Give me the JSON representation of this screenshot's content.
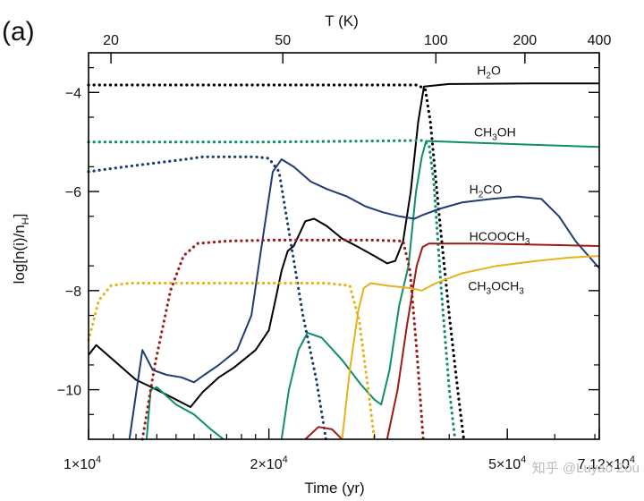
{
  "chart_data": {
    "type": "line",
    "panel_label": "(a)",
    "title": "",
    "xlabel": "Time (yr)",
    "ylabel": "log[n(i)/n",
    "ylabel_sub": "H",
    "ylabel_close": "]",
    "top_axis_title": "T (K)",
    "x_scale": "log",
    "xlim": [
      10000,
      71200
    ],
    "ylim": [
      -11,
      -3.2
    ],
    "x_tick_labels": [
      {
        "value": 10000,
        "mantissa": "1×10",
        "exp": "4"
      },
      {
        "value": 20000,
        "mantissa": "2×10",
        "exp": "4"
      },
      {
        "value": 50000,
        "mantissa": "5×10",
        "exp": "4"
      },
      {
        "value": 71200,
        "mantissa": "7.12×10",
        "exp": "4"
      }
    ],
    "y_ticks": [
      -4,
      -6,
      -8,
      -10
    ],
    "y_tick_labels": [
      "−4",
      "−6",
      "−8",
      "−10"
    ],
    "top_ticks": [
      {
        "label": "20",
        "time": 10900
      },
      {
        "label": "50",
        "time": 21100
      },
      {
        "label": "100",
        "time": 38000
      },
      {
        "label": "200",
        "time": 53500
      },
      {
        "label": "400",
        "time": 71200
      }
    ],
    "grid": false,
    "species_labels": [
      {
        "series": "H2O",
        "parts": [
          [
            "H",
            ""
          ],
          [
            "2",
            "sub"
          ],
          [
            "O",
            ""
          ]
        ],
        "time": 44500,
        "y": -3.55
      },
      {
        "series": "CH3OH",
        "parts": [
          [
            "CH",
            ""
          ],
          [
            "3",
            "sub"
          ],
          [
            "OH",
            ""
          ]
        ],
        "time": 44000,
        "y": -4.8
      },
      {
        "series": "H2CO",
        "parts": [
          [
            "H",
            ""
          ],
          [
            "2",
            "sub"
          ],
          [
            "CO",
            ""
          ]
        ],
        "time": 43200,
        "y": -5.95
      },
      {
        "series": "HCOOCH3",
        "parts": [
          [
            "HCOOCH",
            ""
          ],
          [
            "3",
            "sub"
          ]
        ],
        "time": 43200,
        "y": -6.9
      },
      {
        "series": "CH3OCH3",
        "parts": [
          [
            "CH",
            ""
          ],
          [
            "3",
            "sub"
          ],
          [
            "OCH",
            ""
          ],
          [
            "3",
            "sub"
          ]
        ],
        "time": 43000,
        "y": -7.9
      }
    ],
    "series": [
      {
        "name": "H2O",
        "phase": "gas",
        "color": "#000000",
        "style": "solid",
        "points": [
          [
            10000,
            -9.3
          ],
          [
            10300,
            -9.1
          ],
          [
            11000,
            -9.4
          ],
          [
            12000,
            -9.8
          ],
          [
            13000,
            -10.0
          ],
          [
            14000,
            -10.2
          ],
          [
            14800,
            -10.35
          ],
          [
            15500,
            -10.05
          ],
          [
            16500,
            -9.75
          ],
          [
            17500,
            -9.55
          ],
          [
            19000,
            -9.2
          ],
          [
            20000,
            -8.8
          ],
          [
            20500,
            -8.2
          ],
          [
            21000,
            -7.6
          ],
          [
            21500,
            -7.2
          ],
          [
            22000,
            -7.1
          ],
          [
            22500,
            -6.85
          ],
          [
            23000,
            -6.6
          ],
          [
            23800,
            -6.55
          ],
          [
            25000,
            -6.7
          ],
          [
            26500,
            -6.95
          ],
          [
            28000,
            -7.1
          ],
          [
            30000,
            -7.3
          ],
          [
            31500,
            -7.45
          ],
          [
            32500,
            -7.4
          ],
          [
            33500,
            -7.0
          ],
          [
            34500,
            -6.0
          ],
          [
            35500,
            -4.6
          ],
          [
            36300,
            -3.88
          ],
          [
            40000,
            -3.83
          ],
          [
            55000,
            -3.82
          ],
          [
            71200,
            -3.82
          ]
        ]
      },
      {
        "name": "H2O",
        "phase": "ice",
        "color": "#000000",
        "style": "dotted",
        "points": [
          [
            10000,
            -3.85
          ],
          [
            20000,
            -3.85
          ],
          [
            30000,
            -3.85
          ],
          [
            35500,
            -3.85
          ],
          [
            36500,
            -3.95
          ],
          [
            37200,
            -4.6
          ],
          [
            38500,
            -6.5
          ],
          [
            40000,
            -8.5
          ],
          [
            41500,
            -10.2
          ],
          [
            42300,
            -11.0
          ]
        ]
      },
      {
        "name": "CH3OH",
        "phase": "gas",
        "color": "#0e8e6c",
        "style": "solid",
        "points": [
          [
            12500,
            -11.0
          ],
          [
            12700,
            -10.0
          ],
          [
            13000,
            -9.95
          ],
          [
            14000,
            -10.3
          ],
          [
            15000,
            -10.5
          ],
          [
            16000,
            -10.8
          ],
          [
            16800,
            -11.0
          ]
        ]
      },
      {
        "name": "CH3OH",
        "phase": "gas",
        "color": "#0e8e6c",
        "style": "solid",
        "points": [
          [
            21000,
            -11.0
          ],
          [
            21600,
            -10.0
          ],
          [
            22400,
            -9.2
          ],
          [
            23200,
            -8.85
          ],
          [
            24500,
            -8.95
          ],
          [
            26500,
            -9.4
          ],
          [
            28500,
            -9.9
          ],
          [
            30000,
            -10.2
          ],
          [
            30800,
            -10.3
          ],
          [
            31800,
            -9.6
          ],
          [
            33000,
            -8.3
          ],
          [
            34200,
            -7.5
          ],
          [
            35200,
            -6.0
          ],
          [
            36000,
            -5.3
          ],
          [
            36600,
            -4.98
          ],
          [
            45000,
            -5.02
          ],
          [
            60000,
            -5.07
          ],
          [
            71200,
            -5.1
          ]
        ]
      },
      {
        "name": "CH3OH",
        "phase": "ice",
        "color": "#0e8e6c",
        "style": "dotted",
        "points": [
          [
            10000,
            -5.0
          ],
          [
            20000,
            -5.0
          ],
          [
            30000,
            -4.98
          ],
          [
            36000,
            -4.97
          ],
          [
            37000,
            -5.05
          ],
          [
            37700,
            -5.8
          ],
          [
            38800,
            -8.0
          ],
          [
            40000,
            -10.0
          ],
          [
            40900,
            -11.0
          ]
        ]
      },
      {
        "name": "H2CO",
        "phase": "gas",
        "color": "#1f3b73",
        "style": "solid",
        "points": [
          [
            11700,
            -11.0
          ],
          [
            12300,
            -9.2
          ],
          [
            12800,
            -9.6
          ],
          [
            13500,
            -9.7
          ],
          [
            14300,
            -9.75
          ],
          [
            15000,
            -9.85
          ],
          [
            15600,
            -9.7
          ],
          [
            16500,
            -9.5
          ],
          [
            17700,
            -9.2
          ],
          [
            18700,
            -8.5
          ],
          [
            19500,
            -7.0
          ],
          [
            20300,
            -5.6
          ],
          [
            21000,
            -5.35
          ],
          [
            22000,
            -5.5
          ],
          [
            23500,
            -5.8
          ],
          [
            25000,
            -5.95
          ],
          [
            27000,
            -6.1
          ],
          [
            29000,
            -6.3
          ],
          [
            31000,
            -6.42
          ],
          [
            33000,
            -6.5
          ],
          [
            35000,
            -6.55
          ],
          [
            36000,
            -6.48
          ],
          [
            38500,
            -6.35
          ],
          [
            42000,
            -6.22
          ],
          [
            47000,
            -6.15
          ],
          [
            52000,
            -6.1
          ],
          [
            57000,
            -6.15
          ],
          [
            61000,
            -6.5
          ],
          [
            65000,
            -7.0
          ],
          [
            71200,
            -7.55
          ]
        ]
      },
      {
        "name": "H2CO",
        "phase": "ice",
        "color": "#1f3b73",
        "style": "dotted",
        "points": [
          [
            10000,
            -5.6
          ],
          [
            11500,
            -5.5
          ],
          [
            13000,
            -5.42
          ],
          [
            14500,
            -5.35
          ],
          [
            15500,
            -5.3
          ],
          [
            17000,
            -5.3
          ],
          [
            19000,
            -5.3
          ],
          [
            20000,
            -5.33
          ],
          [
            20800,
            -5.6
          ],
          [
            21600,
            -6.8
          ],
          [
            22800,
            -8.5
          ],
          [
            24000,
            -9.8
          ],
          [
            24900,
            -11.0
          ]
        ]
      },
      {
        "name": "HCOOCH3",
        "phase": "gas",
        "color": "#9b1c14",
        "style": "solid",
        "points": [
          [
            23000,
            -11.0
          ],
          [
            24200,
            -10.75
          ],
          [
            25500,
            -10.8
          ],
          [
            26500,
            -11.0
          ]
        ]
      },
      {
        "name": "HCOOCH3",
        "phase": "gas",
        "color": "#9b1c14",
        "style": "solid",
        "points": [
          [
            31500,
            -11.0
          ],
          [
            32800,
            -10.0
          ],
          [
            34000,
            -8.7
          ],
          [
            35300,
            -7.5
          ],
          [
            36100,
            -7.12
          ],
          [
            37000,
            -7.05
          ],
          [
            45000,
            -7.05
          ],
          [
            60000,
            -7.08
          ],
          [
            71200,
            -7.1
          ]
        ]
      },
      {
        "name": "HCOOCH3",
        "phase": "ice",
        "color": "#9b1c14",
        "style": "dotted",
        "points": [
          [
            12300,
            -11.0
          ],
          [
            12900,
            -9.5
          ],
          [
            13700,
            -8.0
          ],
          [
            14400,
            -7.3
          ],
          [
            15200,
            -7.05
          ],
          [
            17000,
            -7.0
          ],
          [
            20000,
            -6.98
          ],
          [
            30000,
            -6.98
          ],
          [
            33500,
            -7.0
          ],
          [
            34400,
            -7.6
          ],
          [
            35300,
            -9.2
          ],
          [
            36200,
            -11.0
          ]
        ]
      },
      {
        "name": "CH3OCH3",
        "phase": "gas",
        "color": "#e6b21a",
        "style": "solid",
        "points": [
          [
            26500,
            -11.0
          ],
          [
            27300,
            -9.6
          ],
          [
            28200,
            -8.4
          ],
          [
            28800,
            -7.95
          ],
          [
            29600,
            -7.85
          ],
          [
            31500,
            -7.9
          ],
          [
            34500,
            -7.95
          ],
          [
            36000,
            -8.0
          ],
          [
            38000,
            -7.85
          ],
          [
            42000,
            -7.65
          ],
          [
            48000,
            -7.5
          ],
          [
            56000,
            -7.4
          ],
          [
            64000,
            -7.33
          ],
          [
            71200,
            -7.3
          ]
        ]
      },
      {
        "name": "CH3OCH3",
        "phase": "ice",
        "color": "#e6b21a",
        "style": "dotted",
        "points": [
          [
            10000,
            -9.0
          ],
          [
            10400,
            -8.2
          ],
          [
            10900,
            -7.9
          ],
          [
            11700,
            -7.85
          ],
          [
            15000,
            -7.85
          ],
          [
            20000,
            -7.85
          ],
          [
            25000,
            -7.85
          ],
          [
            27300,
            -7.9
          ],
          [
            28300,
            -8.6
          ],
          [
            29300,
            -10.0
          ],
          [
            30000,
            -11.0
          ]
        ]
      }
    ]
  },
  "watermark": "知乎 @Luyao Zou"
}
